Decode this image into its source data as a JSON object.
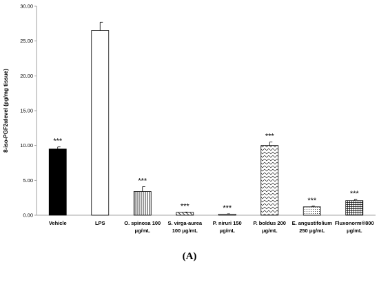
{
  "chart_data": {
    "type": "bar",
    "ylabel": "8-iso-PGF2αlevel (pg/mg tissue)",
    "ylim": [
      0,
      30
    ],
    "yticks": [
      "0.00",
      "5.00",
      "10.00",
      "15.00",
      "20.00",
      "25.00",
      "30.00"
    ],
    "categories": [
      [
        "Vehicle"
      ],
      [
        "LPS"
      ],
      [
        "O. spinosa 100",
        "μg/mL"
      ],
      [
        "S. virga-aurea",
        "100 μg/mL"
      ],
      [
        "P. niruri 150",
        "μg/mL"
      ],
      [
        "P. boldus 200",
        "μg/mL"
      ],
      [
        "E. angustifolium",
        "250 μg/mL"
      ],
      [
        "Fluxonorm®800",
        "μg/mL"
      ]
    ],
    "values": [
      9.5,
      26.5,
      3.4,
      0.4,
      0.15,
      10.0,
      1.2,
      2.1
    ],
    "errors": [
      0.3,
      1.2,
      0.7,
      0.05,
      0.05,
      0.5,
      0.1,
      0.15
    ],
    "significance": [
      "***",
      "",
      "***",
      "***",
      "***",
      "***",
      "***",
      "***"
    ],
    "fills": [
      "solid-black",
      "white",
      "vertical-lines",
      "diagonal-lines",
      "horizontal-lines",
      "zigzag",
      "dots",
      "grid"
    ],
    "grid": false,
    "legend": "none"
  },
  "panel_label": "(A)"
}
